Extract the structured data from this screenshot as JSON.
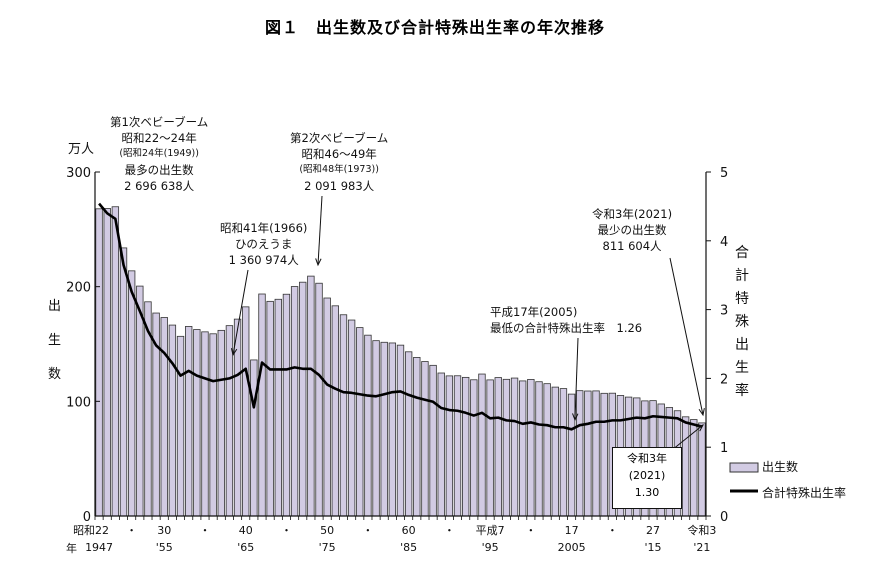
{
  "chart_data": {
    "type": "bar+line",
    "title": "図１　出生数及び合計特殊出生率の年次推移",
    "left_axis": {
      "unit": "万人",
      "label": "出生数",
      "range": [
        0,
        300
      ],
      "ticks": [
        0,
        100,
        200,
        300
      ]
    },
    "right_axis": {
      "label": "合計特殊出生率",
      "range": [
        0,
        5
      ],
      "ticks": [
        0,
        1,
        2,
        3,
        4,
        5
      ]
    },
    "x_axis": {
      "era_label": "昭和",
      "year_label": "年",
      "range": [
        1947,
        2021
      ],
      "ticks": [
        {
          "year": 1947,
          "top": "昭和22",
          "bottom": "1947"
        },
        {
          "year": 1951,
          "top": "・",
          "bottom": ""
        },
        {
          "year": 1955,
          "top": "30",
          "bottom": "'55"
        },
        {
          "year": 1960,
          "top": "・",
          "bottom": ""
        },
        {
          "year": 1965,
          "top": "40",
          "bottom": "'65"
        },
        {
          "year": 1970,
          "top": "・",
          "bottom": ""
        },
        {
          "year": 1975,
          "top": "50",
          "bottom": "'75"
        },
        {
          "year": 1980,
          "top": "・",
          "bottom": ""
        },
        {
          "year": 1985,
          "top": "60",
          "bottom": "'85"
        },
        {
          "year": 1990,
          "top": "・",
          "bottom": ""
        },
        {
          "year": 1995,
          "top": "平成7",
          "bottom": "'95"
        },
        {
          "year": 2000,
          "top": "・",
          "bottom": ""
        },
        {
          "year": 2005,
          "top": "17",
          "bottom": "2005"
        },
        {
          "year": 2010,
          "top": "・",
          "bottom": ""
        },
        {
          "year": 2015,
          "top": "27",
          "bottom": "'15"
        },
        {
          "year": 2021,
          "top": "令和3",
          "bottom": "'21"
        }
      ]
    },
    "years_start": 1947,
    "series": [
      {
        "name": "出生数",
        "type": "bar",
        "color": "#d2cbe3",
        "values": [
          267.9,
          268.2,
          269.7,
          233.8,
          213.8,
          200.5,
          186.8,
          177.0,
          173.1,
          166.5,
          156.7,
          165.3,
          162.6,
          160.6,
          158.9,
          161.9,
          166.0,
          171.7,
          182.4,
          136.1,
          193.6,
          187.2,
          189.0,
          193.4,
          200.1,
          203.9,
          209.2,
          203.0,
          190.1,
          183.3,
          175.5,
          170.9,
          164.3,
          157.7,
          152.9,
          151.5,
          150.9,
          149.0,
          143.2,
          138.3,
          134.7,
          131.4,
          124.7,
          122.2,
          122.3,
          120.9,
          118.8,
          123.8,
          118.7,
          120.7,
          119.2,
          120.3,
          117.8,
          119.1,
          117.1,
          115.4,
          112.4,
          111.1,
          106.3,
          109.3,
          109.0,
          109.1,
          107.0,
          107.1,
          105.1,
          103.7,
          103.0,
          100.4,
          100.6,
          97.7,
          94.6,
          91.8,
          86.5,
          84.1,
          81.2
        ]
      },
      {
        "name": "合計特殊出生率",
        "type": "line",
        "color": "#000000",
        "values": [
          4.54,
          4.4,
          4.32,
          3.65,
          3.26,
          2.98,
          2.69,
          2.48,
          2.37,
          2.22,
          2.04,
          2.11,
          2.04,
          2.0,
          1.96,
          1.98,
          2.0,
          2.05,
          2.14,
          1.58,
          2.23,
          2.13,
          2.13,
          2.13,
          2.16,
          2.14,
          2.14,
          2.05,
          1.91,
          1.85,
          1.8,
          1.79,
          1.77,
          1.75,
          1.74,
          1.77,
          1.8,
          1.81,
          1.76,
          1.72,
          1.69,
          1.66,
          1.57,
          1.54,
          1.53,
          1.5,
          1.46,
          1.5,
          1.42,
          1.43,
          1.39,
          1.38,
          1.34,
          1.36,
          1.33,
          1.32,
          1.29,
          1.29,
          1.26,
          1.32,
          1.34,
          1.37,
          1.37,
          1.39,
          1.39,
          1.41,
          1.43,
          1.42,
          1.45,
          1.44,
          1.43,
          1.42,
          1.36,
          1.33,
          1.3
        ]
      }
    ],
    "legend": {
      "placement": "bottom-right",
      "items": [
        "出生数",
        "合計特殊出生率"
      ]
    },
    "annotations": {
      "boom1": {
        "l1": "第1次ベビーブーム",
        "l2": "昭和22～24年",
        "l3": "(昭和24年(1949))",
        "l4": "最多の出生数",
        "l5": "2 696 638人"
      },
      "boom2": {
        "l1": "第2次ベビーブーム",
        "l2": "昭和46～49年",
        "l3": "(昭和48年(1973))",
        "l4": "2 091 983人"
      },
      "hinoe": {
        "l1": "昭和41年(1966)",
        "l2": "ひのえうま",
        "l3": "1 360 974人"
      },
      "min2005": {
        "l1": "平成17年(2005)",
        "l2": "最低の合計特殊出生率　1.26"
      },
      "min2021": {
        "l1": "令和3年(2021)",
        "l2": "最少の出生数",
        "l3": "811 604人"
      },
      "box": {
        "l1": "令和3年",
        "l2": "(2021)",
        "l3": "1.30"
      }
    }
  }
}
